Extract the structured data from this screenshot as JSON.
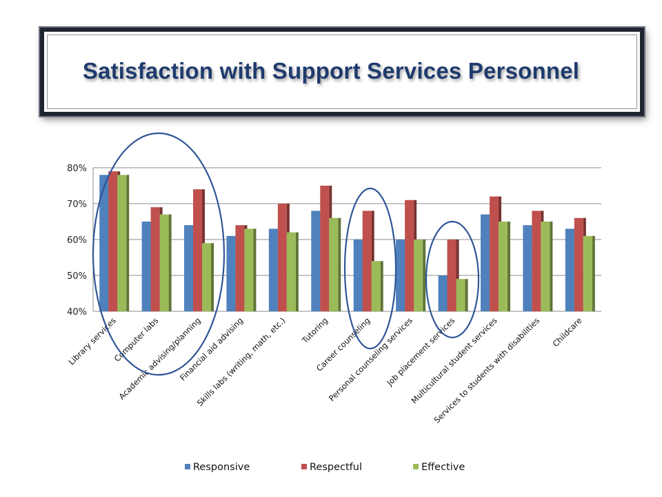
{
  "chart_data": {
    "type": "bar",
    "title": "Satisfaction with Support Services Personnel",
    "categories": [
      "Library services",
      "Computer labs",
      "Academic advising/planning",
      "Financial aid advising",
      "Skills labs (writing, math, etc.)",
      "Tutoring",
      "Career counseling",
      "Personal counseling services",
      "Job placement services",
      "Multicultural student services",
      "Services to students with disabilities",
      "Childcare"
    ],
    "series": [
      {
        "name": "Responsive",
        "color": "#4f81bd",
        "values": [
          78,
          65,
          64,
          61,
          63,
          68,
          60,
          60,
          50,
          67,
          64,
          63
        ]
      },
      {
        "name": "Respectful",
        "color": "#c0504d",
        "values": [
          79,
          69,
          74,
          64,
          70,
          75,
          68,
          71,
          60,
          72,
          68,
          66
        ]
      },
      {
        "name": "Effective",
        "color": "#9bbb59",
        "values": [
          78,
          67,
          59,
          63,
          62,
          66,
          54,
          60,
          49,
          65,
          65,
          61
        ]
      }
    ],
    "ylim": [
      40,
      80
    ],
    "yticks": [
      "40%",
      "50%",
      "60%",
      "70%",
      "80%"
    ],
    "grid": true,
    "legend_position": "bottom",
    "highlighted_categories": [
      [
        "Library services",
        "Computer labs",
        "Academic advising/planning"
      ],
      [
        "Career counseling"
      ],
      [
        "Job placement services"
      ]
    ]
  }
}
